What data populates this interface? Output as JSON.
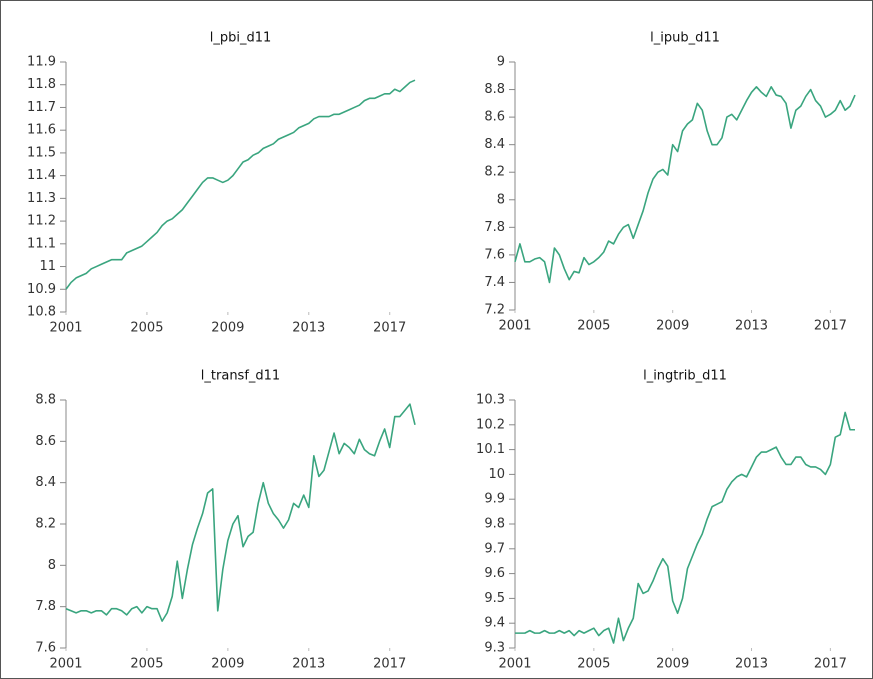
{
  "chart_data": [
    {
      "type": "line",
      "title": "l_pbi_d11",
      "x": [
        2001,
        2001.25,
        2001.5,
        2001.75,
        2002,
        2002.25,
        2002.5,
        2002.75,
        2003,
        2003.25,
        2003.5,
        2003.75,
        2004,
        2004.25,
        2004.5,
        2004.75,
        2005,
        2005.25,
        2005.5,
        2005.75,
        2006,
        2006.25,
        2006.5,
        2006.75,
        2007,
        2007.25,
        2007.5,
        2007.75,
        2008,
        2008.25,
        2008.5,
        2008.75,
        2009,
        2009.25,
        2009.5,
        2009.75,
        2010,
        2010.25,
        2010.5,
        2010.75,
        2011,
        2011.25,
        2011.5,
        2011.75,
        2012,
        2012.25,
        2012.5,
        2012.75,
        2013,
        2013.25,
        2013.5,
        2013.75,
        2014,
        2014.25,
        2014.5,
        2014.75,
        2015,
        2015.25,
        2015.5,
        2015.75,
        2016,
        2016.25,
        2016.5,
        2016.75,
        2017,
        2017.25,
        2017.5,
        2017.75,
        2018,
        2018.25
      ],
      "series": [
        {
          "name": "l_pbi_d11",
          "color": "#3aa57f",
          "values": [
            10.9,
            10.93,
            10.95,
            10.96,
            10.97,
            10.99,
            11.0,
            11.01,
            11.02,
            11.03,
            11.03,
            11.03,
            11.06,
            11.07,
            11.08,
            11.09,
            11.11,
            11.13,
            11.15,
            11.18,
            11.2,
            11.21,
            11.23,
            11.25,
            11.28,
            11.31,
            11.34,
            11.37,
            11.39,
            11.39,
            11.38,
            11.37,
            11.38,
            11.4,
            11.43,
            11.46,
            11.47,
            11.49,
            11.5,
            11.52,
            11.53,
            11.54,
            11.56,
            11.57,
            11.58,
            11.59,
            11.61,
            11.62,
            11.63,
            11.65,
            11.66,
            11.66,
            11.66,
            11.67,
            11.67,
            11.68,
            11.69,
            11.7,
            11.71,
            11.73,
            11.74,
            11.74,
            11.75,
            11.76,
            11.76,
            11.78,
            11.77,
            11.79,
            11.81,
            11.82
          ]
        }
      ],
      "xlim": [
        2001,
        2018.25
      ],
      "xticks": [
        2001,
        2005,
        2009,
        2013,
        2017
      ],
      "ylim": [
        10.8,
        11.9
      ],
      "yticks": [
        10.8,
        10.9,
        11,
        11.1,
        11.2,
        11.3,
        11.4,
        11.5,
        11.6,
        11.7,
        11.8,
        11.9
      ]
    },
    {
      "type": "line",
      "title": "l_ipub_d11",
      "x": [
        2001,
        2001.25,
        2001.5,
        2001.75,
        2002,
        2002.25,
        2002.5,
        2002.75,
        2003,
        2003.25,
        2003.5,
        2003.75,
        2004,
        2004.25,
        2004.5,
        2004.75,
        2005,
        2005.25,
        2005.5,
        2005.75,
        2006,
        2006.25,
        2006.5,
        2006.75,
        2007,
        2007.25,
        2007.5,
        2007.75,
        2008,
        2008.25,
        2008.5,
        2008.75,
        2009,
        2009.25,
        2009.5,
        2009.75,
        2010,
        2010.25,
        2010.5,
        2010.75,
        2011,
        2011.25,
        2011.5,
        2011.75,
        2012,
        2012.25,
        2012.5,
        2012.75,
        2013,
        2013.25,
        2013.5,
        2013.75,
        2014,
        2014.25,
        2014.5,
        2014.75,
        2015,
        2015.25,
        2015.5,
        2015.75,
        2016,
        2016.25,
        2016.5,
        2016.75,
        2017,
        2017.25,
        2017.5,
        2017.75,
        2018,
        2018.25
      ],
      "series": [
        {
          "name": "l_ipub_d11",
          "color": "#3aa57f",
          "values": [
            7.55,
            7.68,
            7.55,
            7.55,
            7.57,
            7.58,
            7.55,
            7.4,
            7.65,
            7.6,
            7.5,
            7.42,
            7.48,
            7.47,
            7.58,
            7.53,
            7.55,
            7.58,
            7.62,
            7.7,
            7.68,
            7.75,
            7.8,
            7.82,
            7.72,
            7.82,
            7.92,
            8.05,
            8.15,
            8.2,
            8.22,
            8.18,
            8.4,
            8.35,
            8.5,
            8.55,
            8.58,
            8.7,
            8.65,
            8.5,
            8.4,
            8.4,
            8.45,
            8.6,
            8.62,
            8.58,
            8.65,
            8.72,
            8.78,
            8.82,
            8.78,
            8.75,
            8.82,
            8.76,
            8.75,
            8.7,
            8.52,
            8.65,
            8.68,
            8.75,
            8.8,
            8.72,
            8.68,
            8.6,
            8.62,
            8.65,
            8.72,
            8.65,
            8.68,
            8.76
          ]
        }
      ],
      "xlim": [
        2001,
        2018.25
      ],
      "xticks": [
        2001,
        2005,
        2009,
        2013,
        2017
      ],
      "ylim": [
        7.2,
        9
      ],
      "yticks": [
        7.2,
        7.4,
        7.6,
        7.8,
        8,
        8.2,
        8.4,
        8.6,
        8.8,
        9
      ]
    },
    {
      "type": "line",
      "title": "l_transf_d11",
      "x": [
        2001,
        2001.25,
        2001.5,
        2001.75,
        2002,
        2002.25,
        2002.5,
        2002.75,
        2003,
        2003.25,
        2003.5,
        2003.75,
        2004,
        2004.25,
        2004.5,
        2004.75,
        2005,
        2005.25,
        2005.5,
        2005.75,
        2006,
        2006.25,
        2006.5,
        2006.75,
        2007,
        2007.25,
        2007.5,
        2007.75,
        2008,
        2008.25,
        2008.5,
        2008.75,
        2009,
        2009.25,
        2009.5,
        2009.75,
        2010,
        2010.25,
        2010.5,
        2010.75,
        2011,
        2011.25,
        2011.5,
        2011.75,
        2012,
        2012.25,
        2012.5,
        2012.75,
        2013,
        2013.25,
        2013.5,
        2013.75,
        2014,
        2014.25,
        2014.5,
        2014.75,
        2015,
        2015.25,
        2015.5,
        2015.75,
        2016,
        2016.25,
        2016.5,
        2016.75,
        2017,
        2017.25,
        2017.5,
        2017.75,
        2018,
        2018.25
      ],
      "series": [
        {
          "name": "l_transf_d11",
          "color": "#3aa57f",
          "values": [
            7.79,
            7.78,
            7.77,
            7.78,
            7.78,
            7.77,
            7.78,
            7.78,
            7.76,
            7.79,
            7.79,
            7.78,
            7.76,
            7.79,
            7.8,
            7.77,
            7.8,
            7.79,
            7.79,
            7.73,
            7.77,
            7.85,
            8.02,
            7.84,
            7.98,
            8.1,
            8.18,
            8.25,
            8.35,
            8.37,
            7.78,
            7.98,
            8.12,
            8.2,
            8.24,
            8.09,
            8.14,
            8.16,
            8.3,
            8.4,
            8.3,
            8.25,
            8.22,
            8.18,
            8.22,
            8.3,
            8.28,
            8.34,
            8.28,
            8.53,
            8.43,
            8.46,
            8.55,
            8.64,
            8.54,
            8.59,
            8.57,
            8.54,
            8.61,
            8.56,
            8.54,
            8.53,
            8.6,
            8.66,
            8.57,
            8.72,
            8.72,
            8.75,
            8.78,
            8.68
          ]
        }
      ],
      "xlim": [
        2001,
        2018.25
      ],
      "xticks": [
        2001,
        2005,
        2009,
        2013,
        2017
      ],
      "ylim": [
        7.6,
        8.8
      ],
      "yticks": [
        7.6,
        7.8,
        8,
        8.2,
        8.4,
        8.6,
        8.8
      ]
    },
    {
      "type": "line",
      "title": "l_ingtrib_d11",
      "x": [
        2001,
        2001.25,
        2001.5,
        2001.75,
        2002,
        2002.25,
        2002.5,
        2002.75,
        2003,
        2003.25,
        2003.5,
        2003.75,
        2004,
        2004.25,
        2004.5,
        2004.75,
        2005,
        2005.25,
        2005.5,
        2005.75,
        2006,
        2006.25,
        2006.5,
        2006.75,
        2007,
        2007.25,
        2007.5,
        2007.75,
        2008,
        2008.25,
        2008.5,
        2008.75,
        2009,
        2009.25,
        2009.5,
        2009.75,
        2010,
        2010.25,
        2010.5,
        2010.75,
        2011,
        2011.25,
        2011.5,
        2011.75,
        2012,
        2012.25,
        2012.5,
        2012.75,
        2013,
        2013.25,
        2013.5,
        2013.75,
        2014,
        2014.25,
        2014.5,
        2014.75,
        2015,
        2015.25,
        2015.5,
        2015.75,
        2016,
        2016.25,
        2016.5,
        2016.75,
        2017,
        2017.25,
        2017.5,
        2017.75,
        2018,
        2018.25
      ],
      "series": [
        {
          "name": "l_ingtrib_d11",
          "color": "#3aa57f",
          "values": [
            9.36,
            9.36,
            9.36,
            9.37,
            9.36,
            9.36,
            9.37,
            9.36,
            9.36,
            9.37,
            9.36,
            9.37,
            9.35,
            9.37,
            9.36,
            9.37,
            9.38,
            9.35,
            9.37,
            9.38,
            9.32,
            9.42,
            9.33,
            9.38,
            9.42,
            9.56,
            9.52,
            9.53,
            9.57,
            9.62,
            9.66,
            9.63,
            9.49,
            9.44,
            9.5,
            9.62,
            9.67,
            9.72,
            9.76,
            9.82,
            9.87,
            9.88,
            9.89,
            9.94,
            9.97,
            9.99,
            10.0,
            9.99,
            10.03,
            10.07,
            10.09,
            10.09,
            10.1,
            10.11,
            10.07,
            10.04,
            10.04,
            10.07,
            10.07,
            10.04,
            10.03,
            10.03,
            10.02,
            10.0,
            10.04,
            10.15,
            10.16,
            10.25,
            10.18,
            10.18
          ]
        }
      ],
      "xlim": [
        2001,
        2018.25
      ],
      "xticks": [
        2001,
        2005,
        2009,
        2013,
        2017
      ],
      "ylim": [
        9.3,
        10.3
      ],
      "yticks": [
        9.3,
        9.4,
        9.5,
        9.6,
        9.7,
        9.8,
        9.9,
        10,
        10.1,
        10.2,
        10.3
      ]
    }
  ]
}
